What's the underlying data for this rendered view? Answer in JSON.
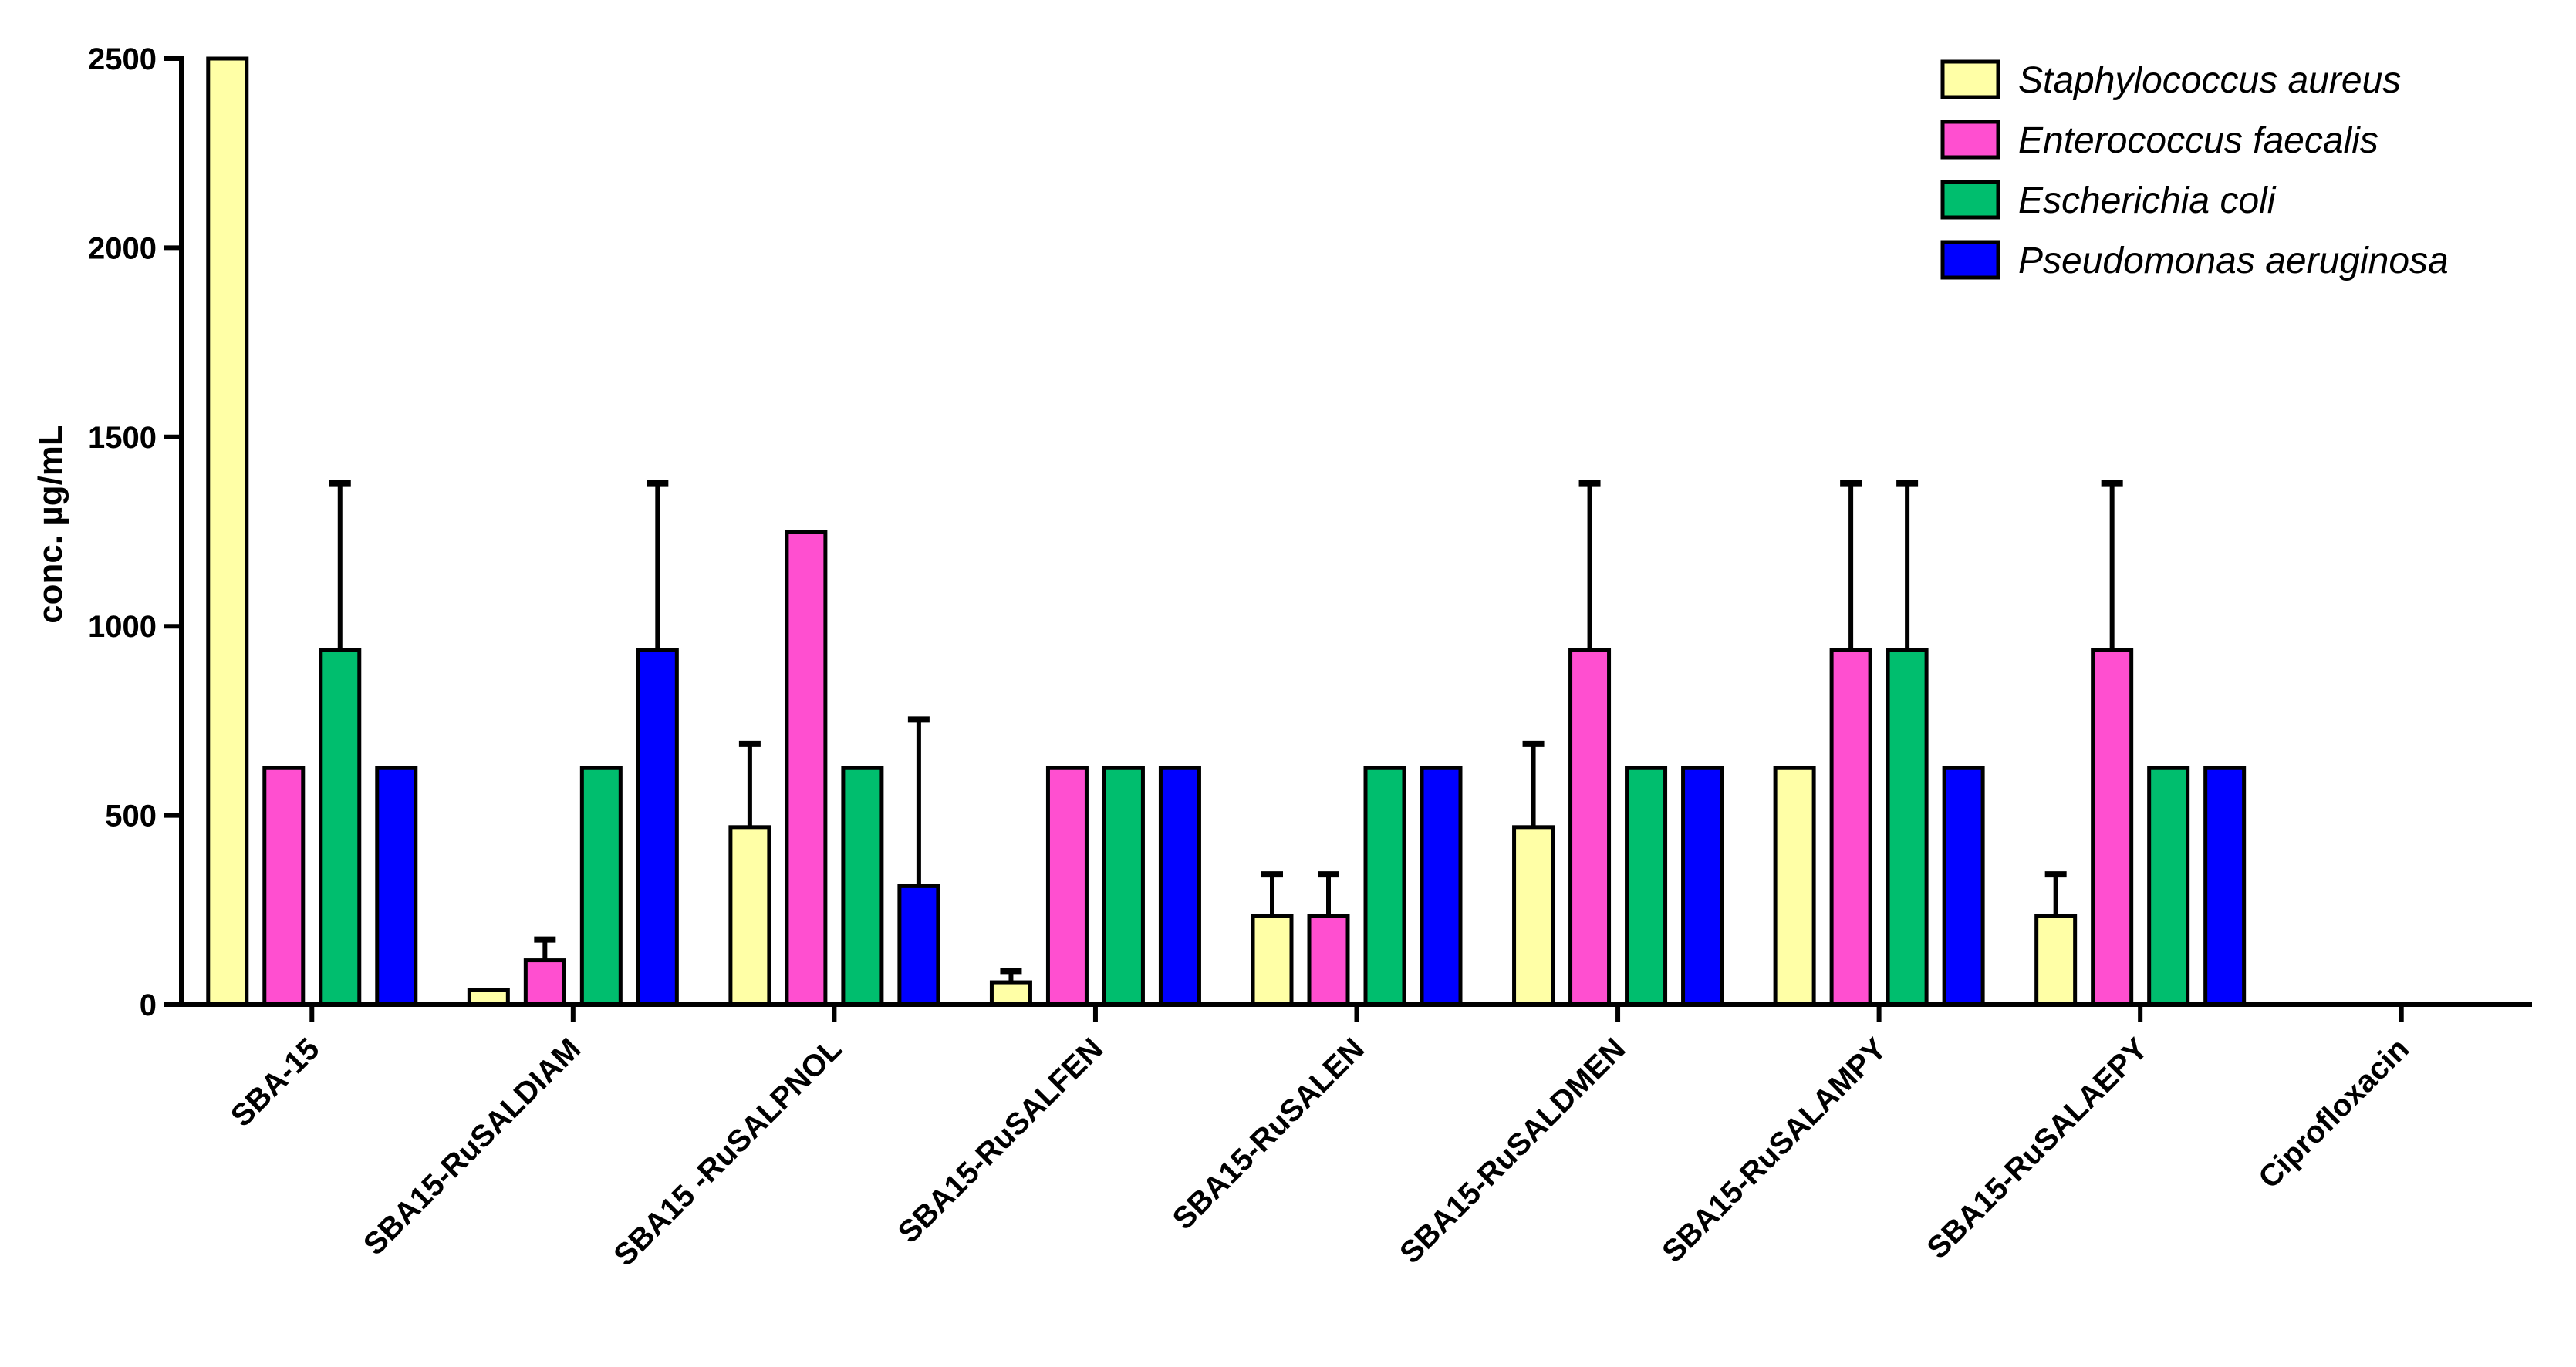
{
  "chart_data": {
    "type": "bar",
    "title": "",
    "xlabel": "",
    "ylabel": "conc. µg/mL",
    "ylim": [
      0,
      2500
    ],
    "yticks": [
      0,
      500,
      1000,
      1500,
      2000,
      2500
    ],
    "grid": false,
    "legend_position": "top-right",
    "categories": [
      "SBA-15",
      "SBA15-RuSALDIAM",
      "SBA15 -RuSALPNOL",
      "SBA15-RuSALFEN",
      "SBA15-RuSALEN",
      "SBA15-RuSALDMEN",
      "SBA15-RuSALAMPY",
      "SBA15-RuSALAEPY",
      "Ciprofloxacin"
    ],
    "series": [
      {
        "name": "Staphylococcus aureus",
        "color": "#FFFFA6",
        "values": [
          2500,
          39,
          469,
          59,
          234,
          469,
          625,
          234,
          0
        ],
        "errors": [
          0,
          0,
          220,
          30,
          110,
          220,
          0,
          110,
          0
        ]
      },
      {
        "name": "Enterococcus faecalis",
        "color": "#FF4FD0",
        "values": [
          625,
          117,
          1250,
          625,
          234,
          938,
          938,
          938,
          0
        ],
        "errors": [
          0,
          55,
          0,
          0,
          110,
          440,
          440,
          440,
          0
        ]
      },
      {
        "name": "Escherichia coli",
        "color": "#00BE6E",
        "values": [
          938,
          625,
          625,
          625,
          625,
          625,
          938,
          625,
          0
        ],
        "errors": [
          440,
          0,
          0,
          0,
          0,
          0,
          440,
          0,
          0
        ]
      },
      {
        "name": "Pseudomonas aeruginosa",
        "color": "#0000FF",
        "values": [
          625,
          938,
          313,
          625,
          625,
          625,
          625,
          625,
          0
        ],
        "errors": [
          0,
          440,
          440,
          0,
          0,
          0,
          0,
          0,
          0
        ]
      }
    ]
  }
}
